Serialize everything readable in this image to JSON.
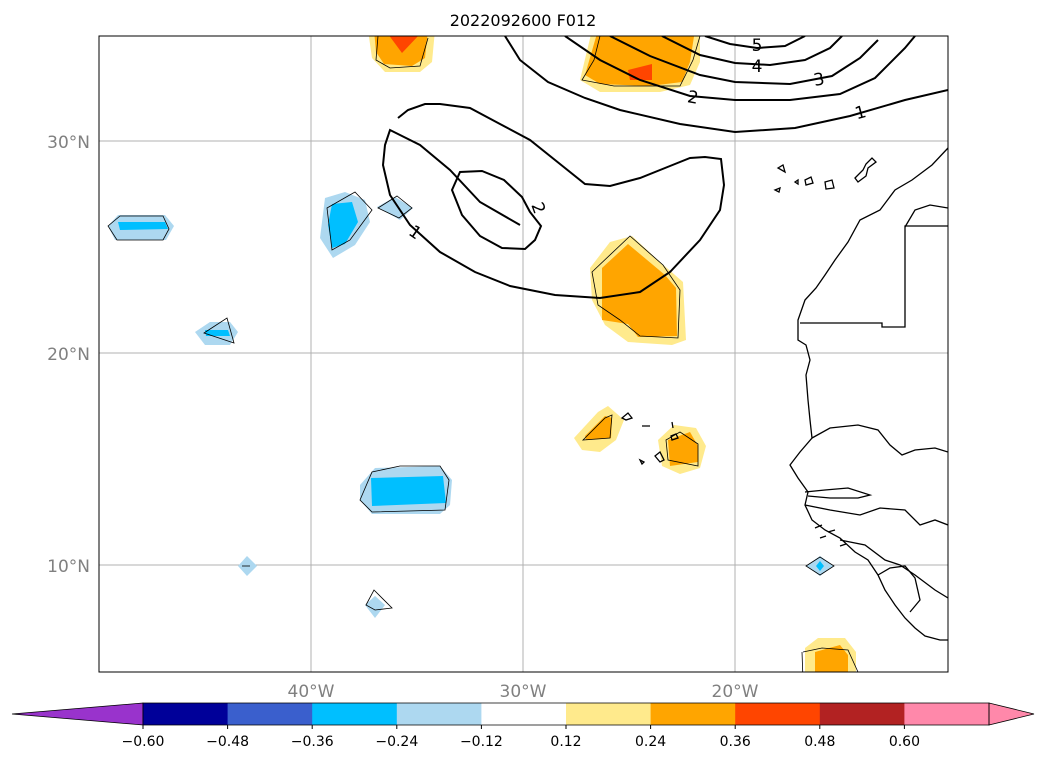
{
  "title": "2022092600 F012",
  "latitude_labels": [
    "30°N",
    "20°N",
    "10°N"
  ],
  "longitude_labels": [
    "40°W",
    "30°W",
    "20°W"
  ],
  "contour_labels": [
    "1",
    "2",
    "1",
    "2",
    "3",
    "4",
    "5"
  ],
  "colorbar": {
    "ticks": [
      "−0.60",
      "−0.48",
      "−0.36",
      "−0.24",
      "−0.12",
      "0.12",
      "0.24",
      "0.36",
      "0.48",
      "0.60"
    ],
    "colors": [
      "#9933cc",
      "#000099",
      "#3a5fcd",
      "#00bfff",
      "#add8f0",
      "#ffffff",
      "#ffea8c",
      "#ffa500",
      "#ff4500",
      "#b22222",
      "#ff88aa",
      "#ff88aa"
    ]
  },
  "fill_colors": {
    "light_blue": "#add8f0",
    "blue": "#00bfff",
    "light_yellow": "#ffea8c",
    "orange": "#ffa500",
    "red_orange": "#ff4500"
  }
}
